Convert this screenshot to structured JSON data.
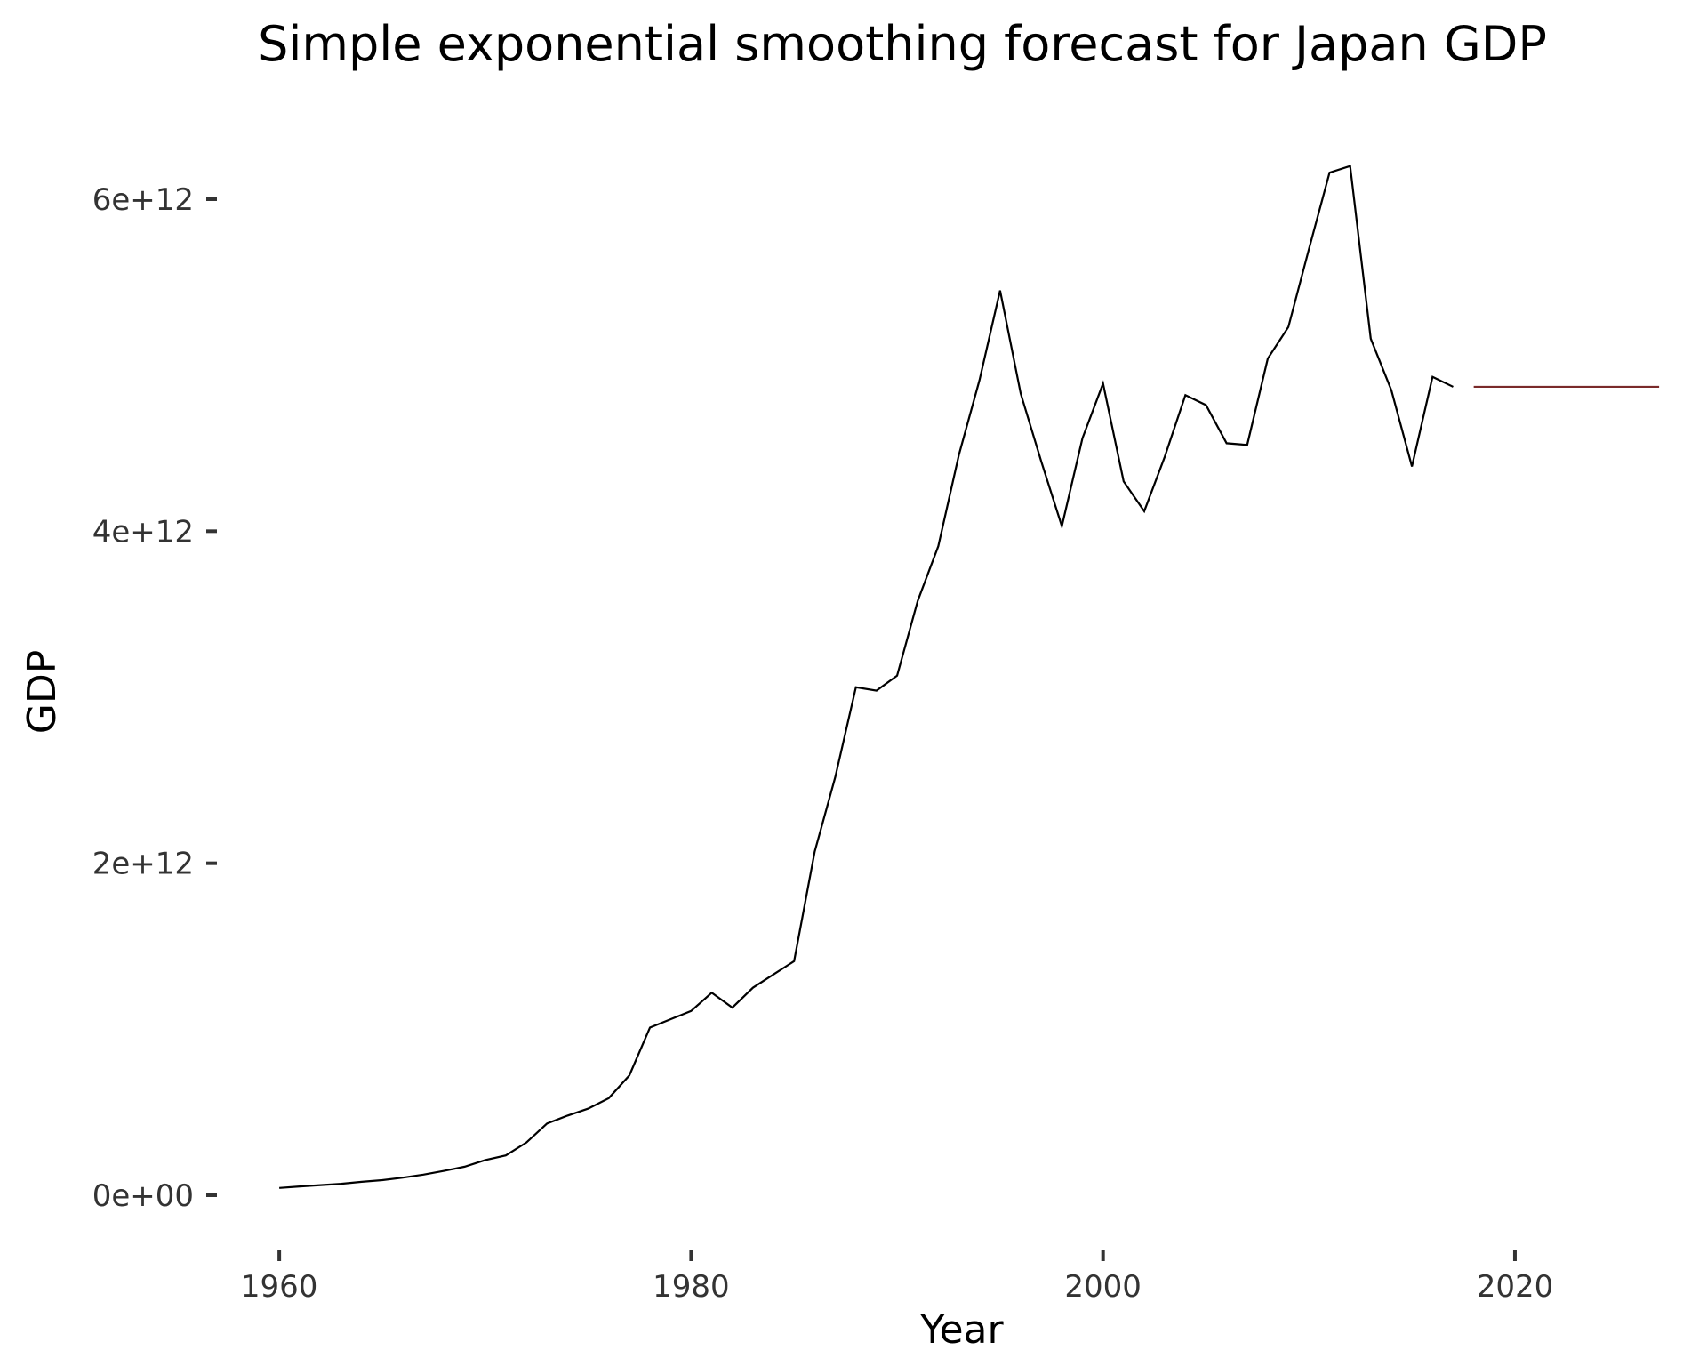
{
  "chart_data": {
    "type": "line",
    "title": "Simple exponential smoothing forecast for Japan GDP",
    "xlabel": "Year",
    "ylabel": "GDP",
    "xlim": [
      1956.8,
      2027.6
    ],
    "ylim": [
      -300000000000,
      6450000000000
    ],
    "x_ticks": [
      1960,
      1980,
      2000,
      2020
    ],
    "x_tick_labels": [
      "1960",
      "1980",
      "2000",
      "2020"
    ],
    "y_ticks": [
      0,
      2000000000000,
      4000000000000,
      6000000000000
    ],
    "y_tick_labels": [
      "0e+00",
      "2e+12",
      "4e+12",
      "6e+12"
    ],
    "grid": false,
    "series": [
      {
        "color": "#000000",
        "x": [
          1960,
          1961,
          1962,
          1963,
          1964,
          1965,
          1966,
          1967,
          1968,
          1969,
          1970,
          1971,
          1972,
          1973,
          1974,
          1975,
          1976,
          1977,
          1978,
          1979,
          1980,
          1981,
          1982,
          1983,
          1984,
          1985,
          1986,
          1987,
          1988,
          1989,
          1990,
          1991,
          1992,
          1993,
          1994,
          1995,
          1996,
          1997,
          1998,
          1999,
          2000,
          2001,
          2002,
          2003,
          2004,
          2005,
          2006,
          2007,
          2008,
          2009,
          2010,
          2011,
          2012,
          2013,
          2014,
          2015,
          2016,
          2017
        ],
        "values": [
          44000000000,
          53000000000,
          61000000000,
          69000000000,
          81000000000,
          91000000000,
          106000000000,
          124000000000,
          147000000000,
          172000000000,
          212000000000,
          240000000000,
          318000000000,
          432000000000,
          480000000000,
          522000000000,
          585000000000,
          722000000000,
          1010000000000,
          1060000000000,
          1110000000000,
          1220000000000,
          1130000000000,
          1250000000000,
          1330000000000,
          1410000000000,
          2070000000000,
          2520000000000,
          3060000000000,
          3040000000000,
          3130000000000,
          3580000000000,
          3910000000000,
          4460000000000,
          4910000000000,
          5450000000000,
          4830000000000,
          4420000000000,
          4030000000000,
          4560000000000,
          4890000000000,
          4300000000000,
          4120000000000,
          4450000000000,
          4820000000000,
          4760000000000,
          4530000000000,
          4520000000000,
          5040000000000,
          5230000000000,
          5700000000000,
          6160000000000,
          6200000000000,
          5160000000000,
          4850000000000,
          4390000000000,
          4930000000000,
          4870000000000
        ]
      },
      {
        "color": "#7a2a2a",
        "x": [
          2018,
          2027
        ],
        "values": [
          4870000000000,
          4870000000000
        ]
      }
    ]
  }
}
